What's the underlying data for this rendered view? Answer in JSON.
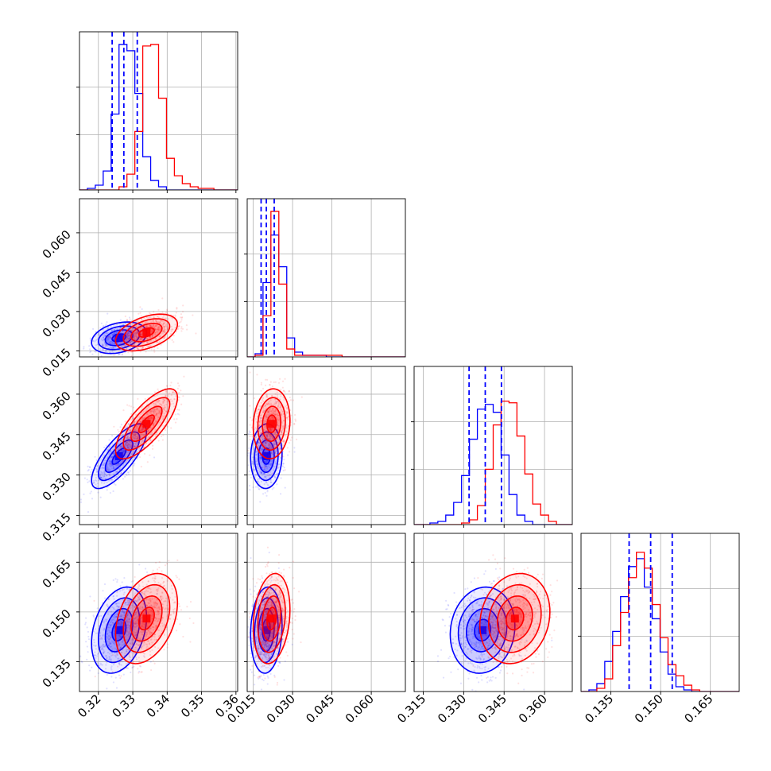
{
  "colors": {
    "series_a": "#0000ff",
    "series_b": "#ff0000",
    "grid": "#b0b0b0",
    "frame": "#000000"
  },
  "chart_data": {
    "type": "corner",
    "title": "",
    "ndim": 4,
    "grid": true,
    "series": [
      {
        "color": "#0000ff"
      },
      {
        "color": "#ff0000"
      }
    ],
    "params": [
      {
        "range": [
          0.3145,
          0.3605
        ],
        "ticks": [
          0.32,
          0.33,
          0.34,
          0.35,
          0.36
        ],
        "tick_labels": [
          "0.32",
          "0.33",
          "0.34",
          "0.35",
          "0.36"
        ]
      },
      {
        "range": [
          0.0127,
          0.073
        ],
        "ticks": [
          0.015,
          0.03,
          0.045,
          0.06
        ],
        "tick_labels": [
          "0.015",
          "0.030",
          "0.045",
          "0.060"
        ]
      },
      {
        "range": [
          0.3116,
          0.3703
        ],
        "ticks": [
          0.315,
          0.33,
          0.345,
          0.36
        ],
        "tick_labels": [
          "0.315",
          "0.330",
          "0.345",
          "0.360"
        ]
      },
      {
        "range": [
          0.126,
          0.1737
        ],
        "ticks": [
          0.135,
          0.15,
          0.165
        ],
        "tick_labels": [
          "0.135",
          "0.150",
          "0.165"
        ]
      }
    ],
    "quantiles": [
      [
        0.324,
        0.3274,
        0.3313
      ],
      [
        0.018,
        0.02,
        0.023
      ],
      [
        0.332,
        0.338,
        0.344
      ],
      [
        0.1405,
        0.147,
        0.1535
      ]
    ],
    "histograms": [
      [
        [
          0,
          1,
          3,
          12,
          48,
          92,
          88,
          61,
          21,
          6,
          2,
          0,
          0,
          0,
          0,
          0,
          0,
          0,
          0,
          0
        ],
        [
          0,
          0,
          0,
          0,
          0,
          2,
          10,
          37,
          91,
          92,
          58,
          20,
          9,
          4,
          2,
          1,
          1,
          0,
          0,
          0
        ]
      ],
      [
        [
          0,
          2,
          47,
          77,
          57,
          12,
          3,
          1,
          1,
          1,
          0,
          0,
          0,
          0,
          0,
          0,
          0,
          0,
          0,
          0
        ],
        [
          0,
          1,
          26,
          92,
          46,
          5,
          1,
          1,
          1,
          1,
          1,
          1,
          0,
          0,
          0,
          0,
          0,
          0,
          0,
          0
        ]
      ],
      [
        [
          0,
          0,
          1,
          2,
          6,
          14,
          31,
          54,
          73,
          76,
          71,
          44,
          19,
          6,
          2,
          0,
          0,
          0,
          0,
          0
        ],
        [
          0,
          0,
          0,
          0,
          0,
          0,
          1,
          3,
          12,
          35,
          63,
          78,
          77,
          56,
          32,
          13,
          6,
          2,
          0,
          0
        ]
      ],
      [
        [
          0,
          1,
          5,
          19,
          38,
          60,
          79,
          84,
          66,
          46,
          25,
          11,
          3,
          1,
          0,
          0,
          0,
          0,
          0,
          0
        ],
        [
          0,
          0,
          2,
          8,
          29,
          50,
          72,
          88,
          78,
          55,
          34,
          17,
          10,
          4,
          1,
          0,
          0,
          0,
          0,
          0
        ]
      ]
    ],
    "posteriors": [
      {
        "mean": [
          0.326,
          0.02,
          0.337,
          0.1445
        ],
        "sd": [
          0.004,
          0.003,
          0.006,
          0.0065
        ],
        "corr": [
          [
            1,
            0.3,
            0.75,
            0.3
          ],
          [
            0.3,
            1,
            0.05,
            0.1
          ],
          [
            0.75,
            0.05,
            1,
            0.1
          ],
          [
            0.3,
            0.1,
            0.1,
            1
          ]
        ]
      },
      {
        "mean": [
          0.334,
          0.022,
          0.349,
          0.148
        ],
        "sd": [
          0.0045,
          0.0035,
          0.0065,
          0.0068
        ],
        "corr": [
          [
            1,
            0.45,
            0.75,
            0.35
          ],
          [
            0.45,
            1,
            0.1,
            0.2
          ],
          [
            0.75,
            0.1,
            1,
            0.15
          ],
          [
            0.35,
            0.2,
            0.15,
            1
          ]
        ]
      }
    ],
    "contour_levels_sigma": [
      0.5,
      1.0,
      1.5,
      2.0
    ]
  }
}
